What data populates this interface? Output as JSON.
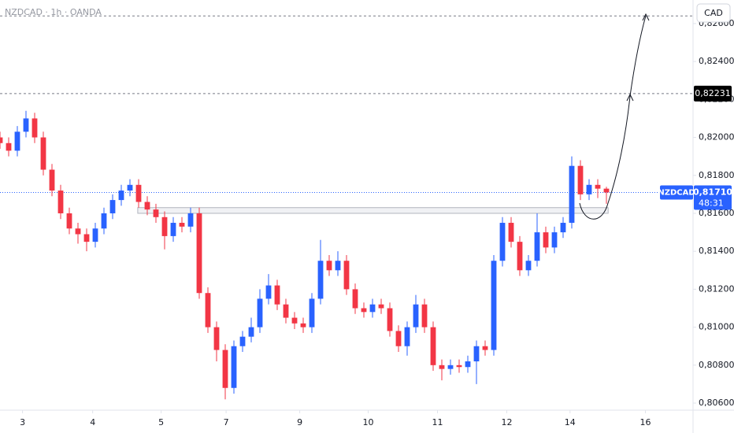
{
  "chart_data": {
    "type": "candlestick",
    "title": "NZDCAD · 1h · OANDA",
    "currency_button": "CAD",
    "up_color": "#2962ff",
    "down_color": "#f23645",
    "x": [
      0,
      1,
      2,
      3,
      4,
      5,
      6,
      7,
      8,
      9,
      10,
      11,
      12,
      13,
      14,
      15,
      16,
      17,
      18,
      19,
      20,
      21,
      22,
      23,
      24,
      25,
      26,
      27,
      28,
      29,
      30,
      31,
      32,
      33,
      34,
      35,
      36,
      37,
      38,
      39,
      40,
      41,
      42,
      43,
      44,
      45,
      46,
      47,
      48,
      49,
      50,
      51,
      52,
      53,
      54,
      55,
      56,
      57,
      58,
      59,
      60,
      61,
      62,
      63,
      64,
      65,
      66,
      67,
      68,
      69,
      70
    ],
    "open": [
      0.82,
      0.8197,
      0.8193,
      0.8203,
      0.821,
      0.82,
      0.8183,
      0.8172,
      0.816,
      0.8152,
      0.8149,
      0.8145,
      0.8152,
      0.816,
      0.8167,
      0.8172,
      0.8175,
      0.8166,
      0.8162,
      0.8158,
      0.8148,
      0.8155,
      0.8153,
      0.816,
      0.8118,
      0.81,
      0.8088,
      0.8068,
      0.809,
      0.8095,
      0.81,
      0.8115,
      0.8122,
      0.8112,
      0.8105,
      0.8102,
      0.81,
      0.8115,
      0.8135,
      0.813,
      0.8135,
      0.812,
      0.811,
      0.8108,
      0.8112,
      0.811,
      0.8098,
      0.809,
      0.81,
      0.8112,
      0.81,
      0.808,
      0.8078,
      0.808,
      0.8079,
      0.8082,
      0.809,
      0.8088,
      0.8135,
      0.8155,
      0.8145,
      0.813,
      0.8135,
      0.815,
      0.8142,
      0.815,
      0.8155,
      0.8185,
      0.817,
      0.8175,
      0.8173
    ],
    "high": [
      0.8203,
      0.82,
      0.8206,
      0.8214,
      0.8213,
      0.8203,
      0.8186,
      0.8175,
      0.8163,
      0.8155,
      0.8152,
      0.8155,
      0.8163,
      0.817,
      0.8175,
      0.8178,
      0.8178,
      0.8169,
      0.8165,
      0.8161,
      0.8158,
      0.8158,
      0.8163,
      0.8163,
      0.8121,
      0.8103,
      0.8091,
      0.8093,
      0.8098,
      0.8105,
      0.812,
      0.8128,
      0.8125,
      0.8115,
      0.8108,
      0.8105,
      0.8118,
      0.8146,
      0.8138,
      0.814,
      0.8138,
      0.8123,
      0.8113,
      0.8115,
      0.8115,
      0.8113,
      0.8101,
      0.8103,
      0.8117,
      0.8115,
      0.8103,
      0.8083,
      0.8083,
      0.8083,
      0.8085,
      0.8093,
      0.8093,
      0.8138,
      0.8158,
      0.8158,
      0.8148,
      0.8138,
      0.816,
      0.8153,
      0.8153,
      0.8158,
      0.819,
      0.8188,
      0.8178,
      0.8178,
      0.8174
    ],
    "low": [
      0.8194,
      0.819,
      0.819,
      0.82,
      0.8197,
      0.818,
      0.8169,
      0.8157,
      0.8149,
      0.8144,
      0.814,
      0.8142,
      0.8149,
      0.8157,
      0.8164,
      0.8169,
      0.8163,
      0.8159,
      0.8155,
      0.8141,
      0.8145,
      0.815,
      0.815,
      0.8115,
      0.8097,
      0.8082,
      0.8062,
      0.8065,
      0.8087,
      0.8092,
      0.8097,
      0.8112,
      0.8109,
      0.8102,
      0.8099,
      0.8097,
      0.8097,
      0.8112,
      0.8127,
      0.8127,
      0.8117,
      0.8107,
      0.8105,
      0.8105,
      0.8107,
      0.8095,
      0.8087,
      0.8085,
      0.8097,
      0.8097,
      0.8077,
      0.8072,
      0.8075,
      0.8076,
      0.8076,
      0.807,
      0.8085,
      0.8085,
      0.8132,
      0.8142,
      0.8127,
      0.8127,
      0.8132,
      0.8139,
      0.8139,
      0.8147,
      0.8152,
      0.8167,
      0.8167,
      0.8168,
      0.8165
    ],
    "close": [
      0.8197,
      0.8193,
      0.8203,
      0.821,
      0.82,
      0.8183,
      0.8172,
      0.816,
      0.8152,
      0.8149,
      0.8145,
      0.8152,
      0.816,
      0.8167,
      0.8172,
      0.8175,
      0.8166,
      0.8162,
      0.8158,
      0.8148,
      0.8155,
      0.8153,
      0.816,
      0.8118,
      0.81,
      0.8088,
      0.8068,
      0.809,
      0.8095,
      0.81,
      0.8115,
      0.8122,
      0.8112,
      0.8105,
      0.8102,
      0.81,
      0.8115,
      0.8135,
      0.813,
      0.8135,
      0.812,
      0.811,
      0.8108,
      0.8112,
      0.811,
      0.8098,
      0.809,
      0.81,
      0.8112,
      0.81,
      0.808,
      0.8078,
      0.808,
      0.8079,
      0.8082,
      0.809,
      0.8088,
      0.8135,
      0.8155,
      0.8145,
      0.813,
      0.8135,
      0.815,
      0.8142,
      0.815,
      0.8155,
      0.8185,
      0.817,
      0.8175,
      0.8173,
      0.8171
    ],
    "xlim": [
      0,
      80
    ],
    "xticks": [
      {
        "value": 2.6,
        "label": "3"
      },
      {
        "value": 10.7,
        "label": "4"
      },
      {
        "value": 18.6,
        "label": "5"
      },
      {
        "value": 26.1,
        "label": "7"
      },
      {
        "value": 34.6,
        "label": "9"
      },
      {
        "value": 42.5,
        "label": "10"
      },
      {
        "value": 50.5,
        "label": "11"
      },
      {
        "value": 58.5,
        "label": "12"
      },
      {
        "value": 65.8,
        "label": "14"
      },
      {
        "value": 74.5,
        "label": "16"
      }
    ],
    "ylim": [
      0.80567,
      0.82724
    ],
    "yticks": [
      {
        "value": 0.806,
        "label": "0,80600"
      },
      {
        "value": 0.808,
        "label": "0,80800"
      },
      {
        "value": 0.81,
        "label": "0,81000"
      },
      {
        "value": 0.812,
        "label": "0,81200"
      },
      {
        "value": 0.814,
        "label": "0,81400"
      },
      {
        "value": 0.816,
        "label": "0,81600"
      },
      {
        "value": 0.818,
        "label": "0,81800"
      },
      {
        "value": 0.82,
        "label": "0,82000"
      },
      {
        "value": 0.822,
        "label": "0,82200"
      },
      {
        "value": 0.824,
        "label": "0,82400"
      },
      {
        "value": 0.826,
        "label": "0,82600"
      }
    ],
    "target_line": 0.8264,
    "level_line": {
      "value": 0.82231,
      "label": "0,82231"
    },
    "last_price": {
      "value": 0.8171,
      "label": "0,81710",
      "symbol": "NZDCAD",
      "countdown": "48:31"
    },
    "zone": {
      "low": 0.816,
      "high": 0.8163,
      "start": 15.9,
      "end": 70.2
    }
  }
}
